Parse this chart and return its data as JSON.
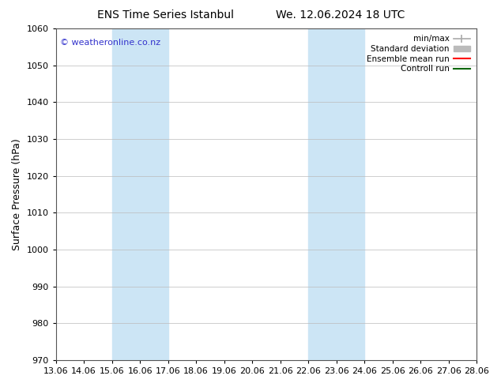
{
  "title_left": "ENS Time Series Istanbul",
  "title_right": "We. 12.06.2024 18 UTC",
  "xlabel": "",
  "ylabel": "Surface Pressure (hPa)",
  "ylim": [
    970,
    1060
  ],
  "yticks": [
    970,
    980,
    990,
    1000,
    1010,
    1020,
    1030,
    1040,
    1050,
    1060
  ],
  "xlim": [
    13.06,
    28.06
  ],
  "xtick_labels": [
    "13.06",
    "14.06",
    "15.06",
    "16.06",
    "17.06",
    "18.06",
    "19.06",
    "20.06",
    "21.06",
    "22.06",
    "23.06",
    "24.06",
    "25.06",
    "26.06",
    "27.06",
    "28.06"
  ],
  "xtick_positions": [
    13.06,
    14.06,
    15.06,
    16.06,
    17.06,
    18.06,
    19.06,
    20.06,
    21.06,
    22.06,
    23.06,
    24.06,
    25.06,
    26.06,
    27.06,
    28.06
  ],
  "shaded_regions": [
    {
      "x_start": 15.06,
      "x_end": 17.06,
      "color": "#cce5f5"
    },
    {
      "x_start": 22.06,
      "x_end": 24.06,
      "color": "#cce5f5"
    }
  ],
  "watermark_text": "© weatheronline.co.nz",
  "watermark_color": "#3333cc",
  "watermark_fontsize": 8,
  "legend_entries": [
    {
      "label": "min/max",
      "color": "#aaaaaa",
      "type": "minmax"
    },
    {
      "label": "Standard deviation",
      "color": "#bbbbbb",
      "type": "patch"
    },
    {
      "label": "Ensemble mean run",
      "color": "#ff0000",
      "type": "line"
    },
    {
      "label": "Controll run",
      "color": "#006600",
      "type": "line"
    }
  ],
  "bg_color": "#ffffff",
  "grid_color": "#bbbbbb",
  "title_fontsize": 10,
  "axis_label_fontsize": 9,
  "tick_fontsize": 8,
  "legend_fontsize": 7.5
}
